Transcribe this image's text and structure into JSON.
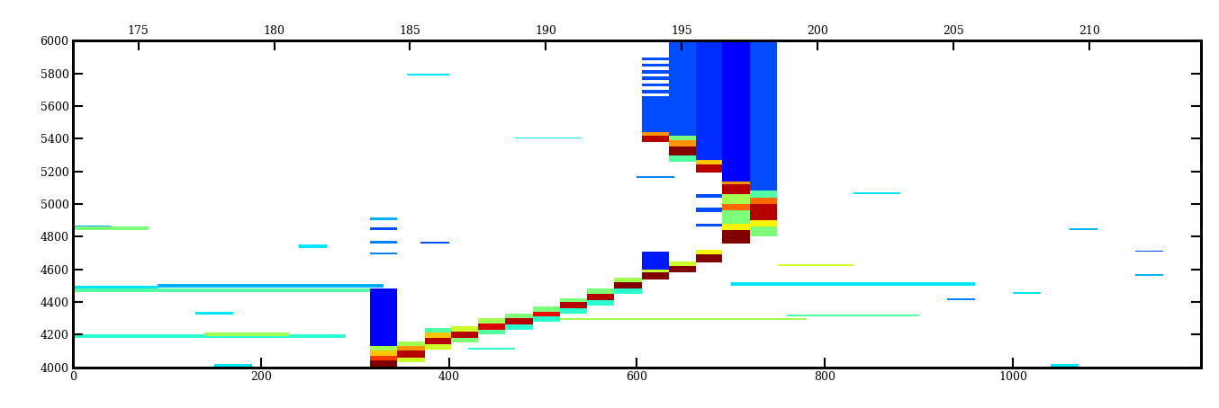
{
  "chart_data": {
    "type": "heatmap",
    "xlim": [
      0,
      1200
    ],
    "xticks": [
      0,
      200,
      400,
      600,
      800,
      1000
    ],
    "x2lim": [
      172.6,
      214.1
    ],
    "x2ticks": [
      175,
      180,
      185,
      190,
      195,
      200,
      205,
      210
    ],
    "ylim": [
      4000,
      6000
    ],
    "yticks": [
      4000,
      4200,
      4400,
      4600,
      4800,
      5000,
      5200,
      5400,
      5600,
      5800,
      6000
    ],
    "value_range": [
      0,
      1
    ],
    "cells": [
      [
        0,
        330,
        4460,
        4480,
        0.45
      ],
      [
        0,
        90,
        4480,
        4500,
        0.35
      ],
      [
        90,
        330,
        4490,
        4510,
        0.3
      ],
      [
        0,
        290,
        4180,
        4200,
        0.4
      ],
      [
        140,
        230,
        4190,
        4210,
        0.55
      ],
      [
        0,
        80,
        4840,
        4860,
        0.5
      ],
      [
        0,
        40,
        4860,
        4870,
        0.3
      ],
      [
        240,
        270,
        4730,
        4750,
        0.35
      ],
      [
        130,
        170,
        4320,
        4340,
        0.35
      ],
      [
        316,
        345,
        4900,
        4915,
        0.3
      ],
      [
        316,
        345,
        4840,
        4855,
        0.2
      ],
      [
        316,
        345,
        4760,
        4775,
        0.25
      ],
      [
        316,
        345,
        4690,
        4705,
        0.25
      ],
      [
        355,
        400,
        5790,
        5800,
        0.35
      ],
      [
        370,
        400,
        4760,
        4770,
        0.2
      ],
      [
        470,
        540,
        5400,
        5410,
        0.35
      ],
      [
        420,
        470,
        4110,
        4120,
        0.4
      ],
      [
        490,
        780,
        4290,
        4300,
        0.55
      ],
      [
        750,
        830,
        4620,
        4630,
        0.6
      ],
      [
        700,
        960,
        4500,
        4520,
        0.35
      ],
      [
        760,
        900,
        4310,
        4320,
        0.45
      ],
      [
        830,
        880,
        5060,
        5070,
        0.35
      ],
      [
        930,
        960,
        4410,
        4420,
        0.25
      ],
      [
        1000,
        1030,
        4450,
        4460,
        0.35
      ],
      [
        1060,
        1090,
        4840,
        4850,
        0.3
      ],
      [
        1130,
        1160,
        4560,
        4570,
        0.3
      ],
      [
        1130,
        1160,
        4710,
        4715,
        0.2
      ],
      [
        600,
        640,
        5160,
        5170,
        0.25
      ],
      [
        1040,
        1070,
        4000,
        4020,
        0.35
      ],
      [
        150,
        190,
        4000,
        4020,
        0.35
      ],
      [
        316,
        345,
        4000,
        4040,
        1.0
      ],
      [
        316,
        345,
        4040,
        4070,
        0.85
      ],
      [
        316,
        345,
        4070,
        4100,
        0.7
      ],
      [
        316,
        345,
        4100,
        4130,
        0.55
      ],
      [
        316,
        345,
        4130,
        4480,
        0.12
      ],
      [
        345,
        374,
        4060,
        4100,
        0.95
      ],
      [
        345,
        374,
        4100,
        4130,
        0.75
      ],
      [
        345,
        374,
        4130,
        4160,
        0.55
      ],
      [
        345,
        374,
        4030,
        4060,
        0.6
      ],
      [
        374,
        402,
        4140,
        4180,
        0.95
      ],
      [
        374,
        402,
        4180,
        4210,
        0.7
      ],
      [
        374,
        402,
        4110,
        4140,
        0.6
      ],
      [
        374,
        402,
        4210,
        4240,
        0.45
      ],
      [
        402,
        431,
        4180,
        4220,
        0.95
      ],
      [
        402,
        431,
        4220,
        4250,
        0.6
      ],
      [
        402,
        431,
        4150,
        4180,
        0.5
      ],
      [
        431,
        460,
        4230,
        4270,
        0.92
      ],
      [
        431,
        460,
        4270,
        4300,
        0.55
      ],
      [
        431,
        460,
        4200,
        4230,
        0.45
      ],
      [
        460,
        489,
        4260,
        4300,
        0.95
      ],
      [
        460,
        489,
        4300,
        4330,
        0.5
      ],
      [
        460,
        489,
        4230,
        4260,
        0.4
      ],
      [
        489,
        518,
        4310,
        4340,
        0.9
      ],
      [
        489,
        518,
        4340,
        4370,
        0.5
      ],
      [
        489,
        518,
        4280,
        4310,
        0.4
      ],
      [
        518,
        547,
        4360,
        4400,
        0.95
      ],
      [
        518,
        547,
        4400,
        4420,
        0.5
      ],
      [
        518,
        547,
        4330,
        4360,
        0.4
      ],
      [
        547,
        576,
        4410,
        4450,
        0.95
      ],
      [
        547,
        576,
        4450,
        4480,
        0.5
      ],
      [
        547,
        576,
        4380,
        4410,
        0.4
      ],
      [
        576,
        605,
        4480,
        4520,
        1.0
      ],
      [
        576,
        605,
        4520,
        4550,
        0.55
      ],
      [
        576,
        605,
        4450,
        4480,
        0.4
      ],
      [
        605,
        634,
        4540,
        4580,
        1.0
      ],
      [
        605,
        634,
        4580,
        4600,
        0.6
      ],
      [
        605,
        634,
        4600,
        4710,
        0.15
      ],
      [
        605,
        634,
        5380,
        5420,
        0.95
      ],
      [
        605,
        634,
        5420,
        5440,
        0.75
      ],
      [
        605,
        634,
        5440,
        5660,
        0.2
      ],
      [
        605,
        634,
        5680,
        5700,
        0.2
      ],
      [
        605,
        634,
        5720,
        5740,
        0.2
      ],
      [
        605,
        634,
        5760,
        5780,
        0.2
      ],
      [
        605,
        634,
        5800,
        5820,
        0.2
      ],
      [
        605,
        634,
        5840,
        5860,
        0.2
      ],
      [
        605,
        634,
        5880,
        5900,
        0.2
      ],
      [
        634,
        663,
        4580,
        4620,
        1.0
      ],
      [
        634,
        663,
        4620,
        4650,
        0.6
      ],
      [
        634,
        663,
        5300,
        5350,
        1.0
      ],
      [
        634,
        663,
        5350,
        5390,
        0.75
      ],
      [
        634,
        663,
        5390,
        5420,
        0.5
      ],
      [
        634,
        663,
        5420,
        6000,
        0.2
      ],
      [
        634,
        663,
        5260,
        5300,
        0.45
      ],
      [
        663,
        691,
        4640,
        4690,
        1.0
      ],
      [
        663,
        691,
        4690,
        4720,
        0.65
      ],
      [
        663,
        691,
        5190,
        5240,
        0.95
      ],
      [
        663,
        691,
        5240,
        5270,
        0.7
      ],
      [
        663,
        691,
        5270,
        6000,
        0.17
      ],
      [
        663,
        691,
        4860,
        4880,
        0.2
      ],
      [
        663,
        691,
        5040,
        5060,
        0.2
      ],
      [
        663,
        691,
        4950,
        4980,
        0.2
      ],
      [
        691,
        720,
        5060,
        5120,
        0.95
      ],
      [
        691,
        720,
        5120,
        5140,
        0.75
      ],
      [
        691,
        720,
        5140,
        6000,
        0.12
      ],
      [
        691,
        720,
        4760,
        4840,
        1.0
      ],
      [
        691,
        720,
        4840,
        4880,
        0.65
      ],
      [
        691,
        720,
        4880,
        4960,
        0.5
      ],
      [
        691,
        720,
        4960,
        5000,
        0.8
      ],
      [
        691,
        720,
        5000,
        5060,
        0.55
      ],
      [
        720,
        749,
        4900,
        5000,
        0.95
      ],
      [
        720,
        749,
        5000,
        5040,
        0.8
      ],
      [
        720,
        749,
        4860,
        4900,
        0.65
      ],
      [
        720,
        749,
        4800,
        4860,
        0.5
      ],
      [
        720,
        749,
        5080,
        6000,
        0.2
      ],
      [
        720,
        749,
        5040,
        5080,
        0.45
      ]
    ]
  }
}
